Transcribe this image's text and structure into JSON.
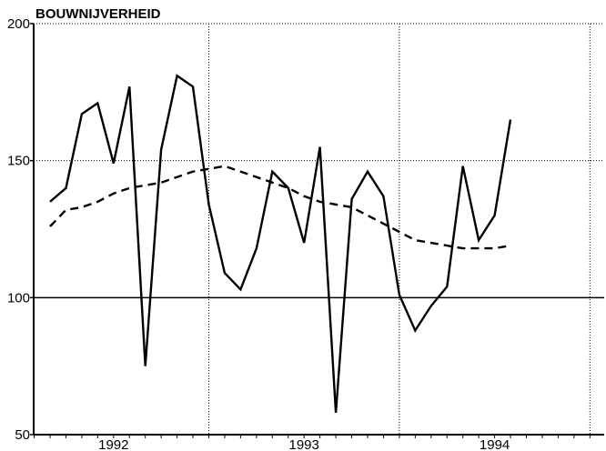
{
  "chart_data": {
    "type": "line",
    "title": "BOUWNIJVERHEID",
    "xlabel": "",
    "ylabel": "",
    "ylim": [
      50,
      200
    ],
    "yticks": [
      50,
      100,
      150,
      200
    ],
    "year_labels": [
      "1992",
      "1993",
      "1994"
    ],
    "grid": "vertical lines at year boundaries, horizontal reference line at 100",
    "colors": {
      "line": "#000000",
      "background": "#ffffff"
    },
    "series": [
      {
        "style": "solid",
        "values": [
          135,
          140,
          167,
          171,
          149,
          177,
          75,
          154,
          181,
          177,
          134,
          109,
          103,
          118,
          146,
          140,
          120,
          155,
          58,
          136,
          146,
          137,
          101,
          88,
          97,
          104,
          148,
          121,
          130,
          165
        ]
      },
      {
        "style": "dashed",
        "values": [
          126,
          132,
          133,
          135,
          138,
          140,
          141,
          142,
          144,
          146,
          147,
          148,
          146,
          144,
          142,
          140,
          137,
          135,
          134,
          133,
          130,
          127,
          124,
          121,
          120,
          119,
          118,
          118,
          118,
          119
        ]
      }
    ]
  }
}
